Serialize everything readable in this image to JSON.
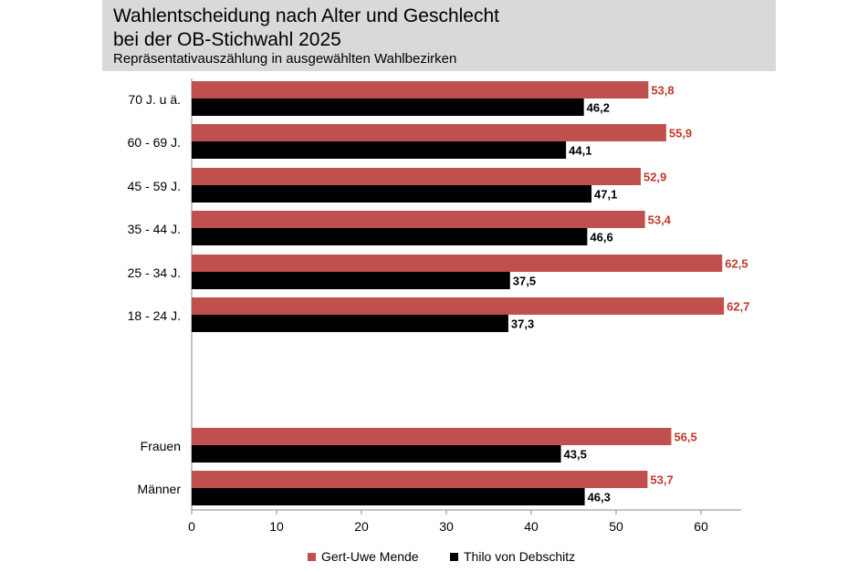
{
  "header": {
    "title_line1": "Wahlentscheidung nach Alter und Geschlecht",
    "title_line2": "bei der OB-Stichwahl 2025",
    "subtitle": "Repräsentativauszählung in ausgewählten Wahlbezirken"
  },
  "legend": {
    "series1": "Gert-Uwe Mende",
    "series2": "Thilo von Debschitz"
  },
  "chart_data": {
    "type": "bar",
    "orientation": "horizontal",
    "title": "Wahlentscheidung nach Alter und Geschlecht bei der OB-Stichwahl 2025",
    "subtitle": "Repräsentativauszählung in ausgewählten Wahlbezirken",
    "categories": [
      "70 J. u ä.",
      "60 - 69 J.",
      "45 - 59 J.",
      "35 - 44 J.",
      "25 - 34 J.",
      "18 - 24 J.",
      "Frauen",
      "Männer"
    ],
    "series": [
      {
        "name": "Gert-Uwe Mende",
        "color": "#c0504d",
        "label_color": "#c0392b",
        "values": [
          53.8,
          55.9,
          52.9,
          53.4,
          62.5,
          62.7,
          56.5,
          53.7
        ]
      },
      {
        "name": "Thilo von Debschitz",
        "color": "#000000",
        "label_color": "#000000",
        "values": [
          46.2,
          44.1,
          47.1,
          46.6,
          37.5,
          37.3,
          43.5,
          46.3
        ]
      }
    ],
    "value_labels": [
      [
        "53,8",
        "55,9",
        "52,9",
        "53,4",
        "62,5",
        "62,7",
        "56,5",
        "53,7"
      ],
      [
        "46,2",
        "44,1",
        "47,1",
        "46,6",
        "37,5",
        "37,3",
        "43,5",
        "46,3"
      ]
    ],
    "xlim": [
      0,
      65
    ],
    "xticks": [
      0,
      10,
      20,
      30,
      40,
      50,
      60
    ],
    "xtick_labels": [
      "0",
      "10",
      "20",
      "30",
      "40",
      "50",
      "60"
    ],
    "grid": false,
    "legend_position": "bottom"
  }
}
